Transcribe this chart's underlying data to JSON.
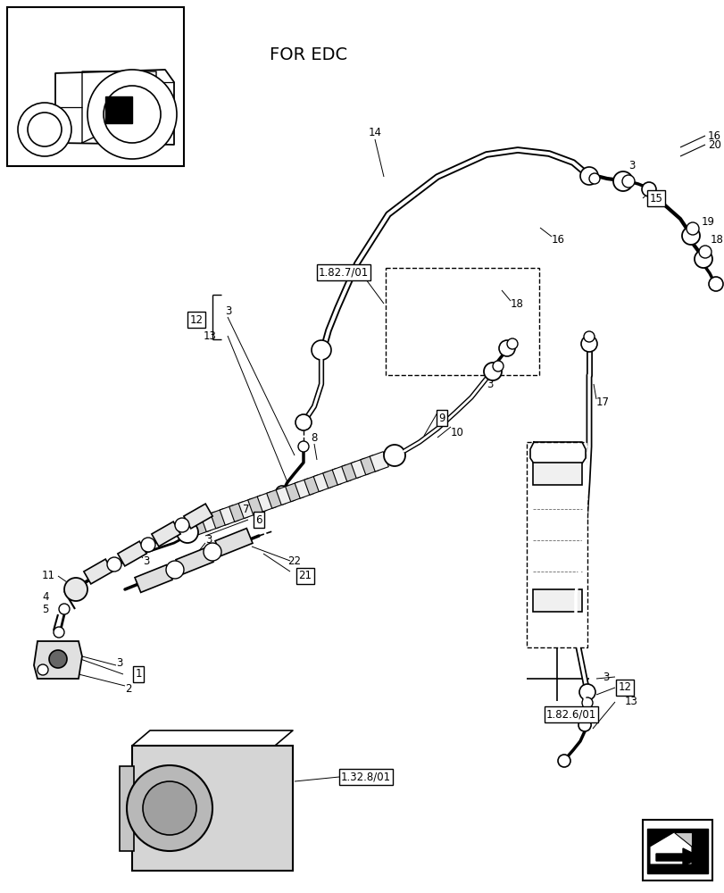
{
  "bg_color": "#ffffff",
  "title": "FOR EDC",
  "figsize": [
    8.12,
    10.0
  ],
  "dpi": 100,
  "pipe14_color": "#222222",
  "pipe17_color": "#222222"
}
